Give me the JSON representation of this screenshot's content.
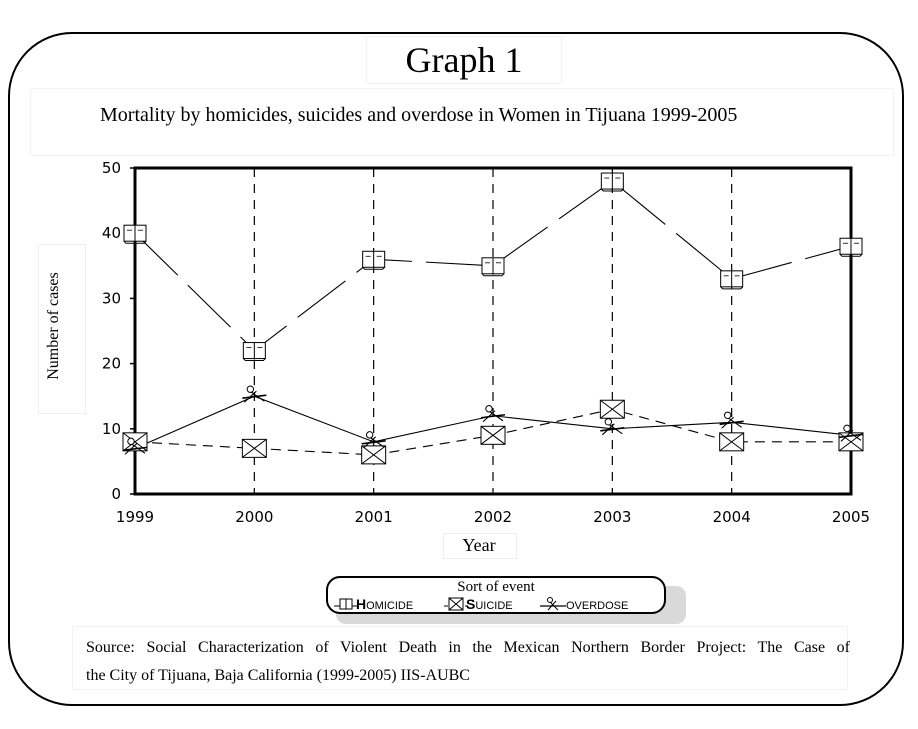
{
  "graph_title": "Graph 1",
  "chart_data": {
    "type": "line",
    "title": "Mortality by homicides, suicides and overdose in Women in Tijuana 1999-2005",
    "xlabel": "Year",
    "ylabel": "Number of cases",
    "x": [
      "1999",
      "2000",
      "2001",
      "2002",
      "2003",
      "2004",
      "2005"
    ],
    "ylim": [
      0,
      50
    ],
    "yticks": [
      "0",
      "10",
      "20",
      "30",
      "40",
      "50"
    ],
    "grid": "vertical dashed lines at each year",
    "series": [
      {
        "name": "HOMICIDE",
        "values": [
          40,
          22,
          36,
          35,
          48,
          33,
          38
        ],
        "line": "long-dash",
        "marker": "book-icon",
        "color": "#000000"
      },
      {
        "name": "SUICIDE",
        "values": [
          8,
          7,
          6,
          9,
          13,
          8,
          8
        ],
        "line": "dashed",
        "marker": "envelope-icon",
        "color": "#000000"
      },
      {
        "name": "OVERDOSE",
        "values": [
          7,
          15,
          8,
          12,
          10,
          11,
          9
        ],
        "line": "solid",
        "marker": "scissors-icon",
        "color": "#000000"
      }
    ],
    "legend": {
      "title": "Sort of event",
      "placement": "bottom-center"
    }
  },
  "legend_items": [
    {
      "cap": "H",
      "rest": "OMICIDE"
    },
    {
      "cap": "S",
      "rest": "UICIDE"
    },
    {
      "cap": "",
      "rest": "OVERDOSE"
    }
  ],
  "source": {
    "line1": "Source: Social Characterization of Violent Death in the Mexican Northern Border Project: The Case of",
    "line2": "the City of Tijuana, Baja California (1999-2005) IIS-AUBC"
  }
}
